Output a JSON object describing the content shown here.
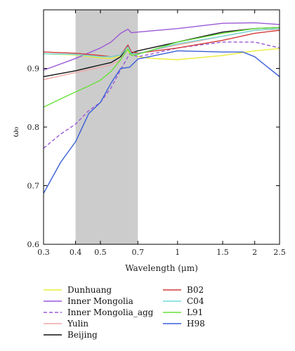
{
  "chart_data": {
    "type": "line",
    "xlabel": "Wavelength (μm)",
    "ylabel": "ω₀",
    "x_scale": "log",
    "xlim": [
      0.3,
      2.5
    ],
    "ylim": [
      0.6,
      1.0
    ],
    "xticks": [
      0.3,
      0.4,
      0.5,
      0.7,
      1,
      1.5,
      2,
      2.5
    ],
    "xtick_labels": [
      "0.3",
      "0.4",
      "0.5",
      "0.7",
      "1",
      "1.5",
      "2",
      "2.5"
    ],
    "yticks": [
      0.6,
      0.7,
      0.8,
      0.9
    ],
    "ytick_labels": [
      "0.6",
      "0.7",
      "0.8",
      "0.9"
    ],
    "shaded_region": {
      "x_start": 0.4,
      "x_end": 0.7,
      "color": "#cccccc"
    },
    "grid": false,
    "legend_placement": "below plot, two columns",
    "series": [
      {
        "name": "Dunhuang",
        "color": "#ecec3a",
        "dash": "solid",
        "x": [
          0.3,
          0.4,
          0.5,
          0.55,
          0.6,
          0.63,
          0.65,
          0.7,
          0.8,
          1.0,
          1.5,
          2.0,
          2.5
        ],
        "y": [
          0.925,
          0.923,
          0.918,
          0.917,
          0.921,
          0.935,
          0.925,
          0.92,
          0.917,
          0.915,
          0.922,
          0.93,
          0.934
        ]
      },
      {
        "name": "Inner Mongolia",
        "color": "#9b59d8",
        "dash": "solid",
        "x": [
          0.3,
          0.4,
          0.5,
          0.55,
          0.6,
          0.64,
          0.66,
          0.7,
          1.0,
          1.5,
          2.0,
          2.5
        ],
        "y": [
          0.897,
          0.917,
          0.935,
          0.945,
          0.96,
          0.967,
          0.961,
          0.962,
          0.968,
          0.977,
          0.978,
          0.975
        ]
      },
      {
        "name": "Inner Mongolia_agg",
        "color": "#9b59d8",
        "dash": "dashed",
        "x": [
          0.3,
          0.35,
          0.4,
          0.45,
          0.5,
          0.55,
          0.6,
          0.65,
          0.7,
          0.8,
          1.0,
          1.5,
          2.0,
          2.5
        ],
        "y": [
          0.764,
          0.788,
          0.805,
          0.828,
          0.842,
          0.867,
          0.898,
          0.925,
          0.92,
          0.925,
          0.935,
          0.945,
          0.945,
          0.935
        ]
      },
      {
        "name": "Yulin",
        "color": "#f0a6a6",
        "dash": "solid",
        "x": [
          0.3,
          0.4,
          0.5,
          0.55,
          0.6,
          0.64,
          0.66,
          0.7,
          1.0,
          1.5,
          2.0,
          2.5
        ],
        "y": [
          0.881,
          0.893,
          0.902,
          0.906,
          0.915,
          0.933,
          0.924,
          0.926,
          0.94,
          0.955,
          0.965,
          0.967
        ]
      },
      {
        "name": "Beijing",
        "color": "#111111",
        "dash": "solid",
        "x": [
          0.3,
          0.4,
          0.5,
          0.55,
          0.6,
          0.64,
          0.66,
          0.7,
          1.0,
          1.5,
          2.0,
          2.5
        ],
        "y": [
          0.886,
          0.896,
          0.906,
          0.91,
          0.92,
          0.938,
          0.926,
          0.93,
          0.945,
          0.962,
          0.968,
          0.97
        ]
      },
      {
        "name": "B02",
        "color": "#d23a3a",
        "dash": "solid",
        "x": [
          0.3,
          0.4,
          0.5,
          0.55,
          0.6,
          0.64,
          0.66,
          0.7,
          1.0,
          1.5,
          2.0,
          2.5
        ],
        "y": [
          0.928,
          0.926,
          0.922,
          0.92,
          0.923,
          0.94,
          0.928,
          0.926,
          0.935,
          0.948,
          0.96,
          0.965
        ]
      },
      {
        "name": "C04",
        "color": "#6fd8d4",
        "dash": "solid",
        "x": [
          0.3,
          0.4,
          0.5,
          0.55,
          0.6,
          0.64,
          0.66,
          0.7,
          1.0,
          1.5,
          2.0,
          2.5
        ],
        "y": [
          0.925,
          0.924,
          0.92,
          0.92,
          0.923,
          0.937,
          0.925,
          0.925,
          0.942,
          0.955,
          0.965,
          0.968
        ]
      },
      {
        "name": "L91",
        "color": "#66e03a",
        "dash": "solid",
        "x": [
          0.3,
          0.35,
          0.4,
          0.45,
          0.5,
          0.55,
          0.6,
          0.64,
          0.66,
          0.7,
          1.0,
          1.5,
          2.0,
          2.5
        ],
        "y": [
          0.834,
          0.848,
          0.86,
          0.87,
          0.88,
          0.895,
          0.915,
          0.933,
          0.922,
          0.924,
          0.945,
          0.96,
          0.968,
          0.97
        ]
      },
      {
        "name": "H98",
        "color": "#3a5fd8",
        "dash": "solid",
        "x": [
          0.3,
          0.35,
          0.4,
          0.45,
          0.5,
          0.55,
          0.6,
          0.65,
          0.7,
          1.0,
          1.5,
          1.8,
          2.0,
          2.5
        ],
        "y": [
          0.687,
          0.74,
          0.775,
          0.823,
          0.842,
          0.875,
          0.9,
          0.902,
          0.916,
          0.93,
          0.928,
          0.928,
          0.92,
          0.886
        ]
      }
    ]
  }
}
